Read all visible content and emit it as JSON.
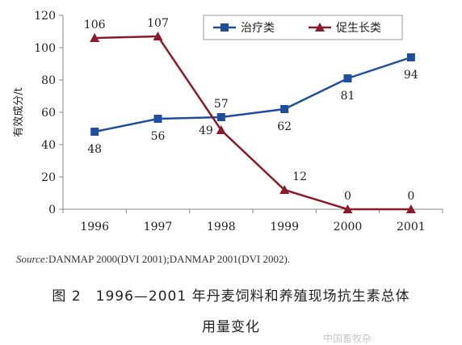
{
  "chart_data": {
    "type": "line",
    "categories": [
      "1996",
      "1997",
      "1998",
      "1999",
      "2000",
      "2001"
    ],
    "series": [
      {
        "name": "治疗类",
        "values": [
          48,
          56,
          57,
          62,
          81,
          94
        ],
        "color": "#1f4e9c",
        "marker": "square"
      },
      {
        "name": "促生长类",
        "values": [
          106,
          107,
          49,
          12,
          0,
          0
        ],
        "color": "#8b1a2a",
        "marker": "triangle"
      }
    ],
    "ylabel": "有效成分/t",
    "ylim": [
      0,
      120
    ],
    "yticks": [
      0,
      20,
      40,
      60,
      80,
      100,
      120
    ],
    "grid": false,
    "legend": "top-right"
  },
  "source": {
    "prefix": "Source:",
    "text": "DANMAP 2000(DVI 2001);DANMAP 2001(DVI 2002)."
  },
  "caption": {
    "line1": "图 2　1996—2001 年丹麦饲料和养殖现场抗生素总体",
    "line2": "用量变化"
  },
  "watermark": "中国畜牧杂"
}
